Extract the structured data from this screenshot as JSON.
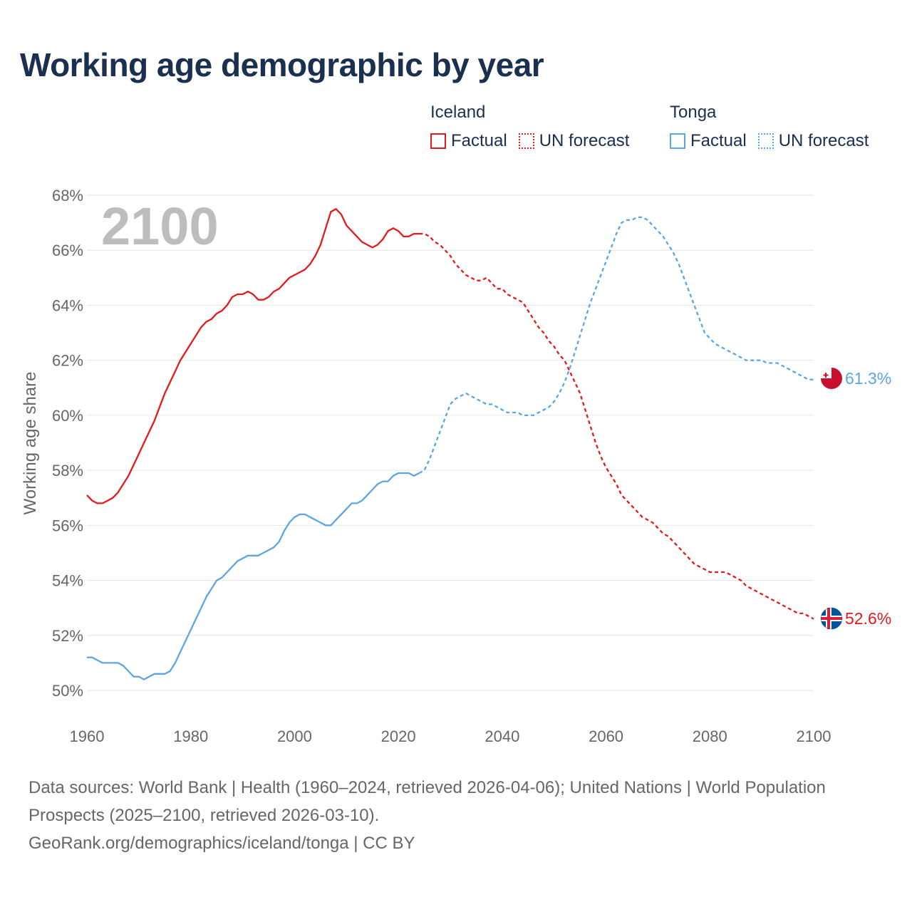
{
  "title": "Working age demographic by year",
  "legend": [
    {
      "country": "Iceland",
      "factual_label": "Factual",
      "forecast_label": "UN forecast",
      "color": "#e41a1c"
    },
    {
      "country": "Tonga",
      "factual_label": "Factual",
      "forecast_label": "UN forecast",
      "color": "#5da5e6"
    }
  ],
  "year_label": "2100",
  "footer": {
    "sources": "Data sources: World Bank | Health (1960–2024, retrieved 2026-04-06); United Nations | World Population Prospects (2025–2100, retrieved 2026-03-10).",
    "link": "GeoRank.org/demographics/iceland/tonga | CC BY"
  },
  "chart_data": {
    "type": "line",
    "title": "Working age demographic by year",
    "xlabel": "",
    "ylabel": "Working age share",
    "xlim": [
      1960,
      2100
    ],
    "ylim": [
      49.2,
      68.3
    ],
    "x_ticks": [
      1960,
      1980,
      2000,
      2020,
      2040,
      2060,
      2080,
      2100
    ],
    "y_ticks": [
      50,
      52,
      54,
      56,
      58,
      60,
      62,
      64,
      66,
      68
    ],
    "y_tick_labels": [
      "50%",
      "52%",
      "54%",
      "56%",
      "58%",
      "60%",
      "62%",
      "64%",
      "66%",
      "68%"
    ],
    "grid": true,
    "factual_end_year": 2024,
    "series": [
      {
        "name": "Iceland",
        "color": "#e41a1c",
        "end_label": "52.6%",
        "points": [
          [
            1960,
            57.1
          ],
          [
            1961,
            56.9
          ],
          [
            1962,
            56.8
          ],
          [
            1963,
            56.8
          ],
          [
            1964,
            56.9
          ],
          [
            1965,
            57.0
          ],
          [
            1966,
            57.2
          ],
          [
            1967,
            57.5
          ],
          [
            1968,
            57.8
          ],
          [
            1969,
            58.2
          ],
          [
            1970,
            58.6
          ],
          [
            1971,
            59.0
          ],
          [
            1972,
            59.4
          ],
          [
            1973,
            59.8
          ],
          [
            1974,
            60.3
          ],
          [
            1975,
            60.8
          ],
          [
            1976,
            61.2
          ],
          [
            1977,
            61.6
          ],
          [
            1978,
            62.0
          ],
          [
            1979,
            62.3
          ],
          [
            1980,
            62.6
          ],
          [
            1981,
            62.9
          ],
          [
            1982,
            63.2
          ],
          [
            1983,
            63.4
          ],
          [
            1984,
            63.5
          ],
          [
            1985,
            63.7
          ],
          [
            1986,
            63.8
          ],
          [
            1987,
            64.0
          ],
          [
            1988,
            64.3
          ],
          [
            1989,
            64.4
          ],
          [
            1990,
            64.4
          ],
          [
            1991,
            64.5
          ],
          [
            1992,
            64.4
          ],
          [
            1993,
            64.2
          ],
          [
            1994,
            64.2
          ],
          [
            1995,
            64.3
          ],
          [
            1996,
            64.5
          ],
          [
            1997,
            64.6
          ],
          [
            1998,
            64.8
          ],
          [
            1999,
            65.0
          ],
          [
            2000,
            65.1
          ],
          [
            2001,
            65.2
          ],
          [
            2002,
            65.3
          ],
          [
            2003,
            65.5
          ],
          [
            2004,
            65.8
          ],
          [
            2005,
            66.2
          ],
          [
            2006,
            66.8
          ],
          [
            2007,
            67.4
          ],
          [
            2008,
            67.5
          ],
          [
            2009,
            67.3
          ],
          [
            2010,
            66.9
          ],
          [
            2011,
            66.7
          ],
          [
            2012,
            66.5
          ],
          [
            2013,
            66.3
          ],
          [
            2014,
            66.2
          ],
          [
            2015,
            66.1
          ],
          [
            2016,
            66.2
          ],
          [
            2017,
            66.4
          ],
          [
            2018,
            66.7
          ],
          [
            2019,
            66.8
          ],
          [
            2020,
            66.7
          ],
          [
            2021,
            66.5
          ],
          [
            2022,
            66.5
          ],
          [
            2023,
            66.6
          ],
          [
            2024,
            66.6
          ],
          [
            2025,
            66.6
          ],
          [
            2026,
            66.5
          ],
          [
            2027,
            66.3
          ],
          [
            2028,
            66.2
          ],
          [
            2029,
            66.0
          ],
          [
            2030,
            65.8
          ],
          [
            2031,
            65.5
          ],
          [
            2032,
            65.3
          ],
          [
            2033,
            65.1
          ],
          [
            2034,
            65.0
          ],
          [
            2035,
            64.9
          ],
          [
            2036,
            64.9
          ],
          [
            2037,
            65.0
          ],
          [
            2038,
            64.8
          ],
          [
            2039,
            64.6
          ],
          [
            2040,
            64.6
          ],
          [
            2041,
            64.4
          ],
          [
            2042,
            64.3
          ],
          [
            2043,
            64.2
          ],
          [
            2044,
            64.1
          ],
          [
            2045,
            63.8
          ],
          [
            2046,
            63.5
          ],
          [
            2047,
            63.2
          ],
          [
            2048,
            63.0
          ],
          [
            2049,
            62.7
          ],
          [
            2050,
            62.5
          ],
          [
            2051,
            62.2
          ],
          [
            2052,
            62.0
          ],
          [
            2053,
            61.6
          ],
          [
            2054,
            61.2
          ],
          [
            2055,
            60.8
          ],
          [
            2056,
            60.2
          ],
          [
            2057,
            59.6
          ],
          [
            2058,
            59.0
          ],
          [
            2059,
            58.5
          ],
          [
            2060,
            58.1
          ],
          [
            2061,
            57.8
          ],
          [
            2062,
            57.5
          ],
          [
            2063,
            57.1
          ],
          [
            2064,
            56.9
          ],
          [
            2065,
            56.7
          ],
          [
            2066,
            56.5
          ],
          [
            2067,
            56.3
          ],
          [
            2068,
            56.2
          ],
          [
            2069,
            56.1
          ],
          [
            2070,
            55.9
          ],
          [
            2071,
            55.7
          ],
          [
            2072,
            55.6
          ],
          [
            2073,
            55.4
          ],
          [
            2074,
            55.2
          ],
          [
            2075,
            55.0
          ],
          [
            2076,
            54.8
          ],
          [
            2077,
            54.6
          ],
          [
            2078,
            54.5
          ],
          [
            2079,
            54.4
          ],
          [
            2080,
            54.3
          ],
          [
            2081,
            54.3
          ],
          [
            2082,
            54.3
          ],
          [
            2083,
            54.3
          ],
          [
            2084,
            54.2
          ],
          [
            2085,
            54.1
          ],
          [
            2086,
            54.0
          ],
          [
            2087,
            53.8
          ],
          [
            2088,
            53.7
          ],
          [
            2089,
            53.6
          ],
          [
            2090,
            53.5
          ],
          [
            2091,
            53.4
          ],
          [
            2092,
            53.3
          ],
          [
            2093,
            53.2
          ],
          [
            2094,
            53.1
          ],
          [
            2095,
            53.0
          ],
          [
            2096,
            52.9
          ],
          [
            2097,
            52.8
          ],
          [
            2098,
            52.8
          ],
          [
            2099,
            52.7
          ],
          [
            2100,
            52.6
          ]
        ]
      },
      {
        "name": "Tonga",
        "color": "#5da5e6",
        "end_label": "61.3%",
        "points": [
          [
            1960,
            51.2
          ],
          [
            1961,
            51.2
          ],
          [
            1962,
            51.1
          ],
          [
            1963,
            51.0
          ],
          [
            1964,
            51.0
          ],
          [
            1965,
            51.0
          ],
          [
            1966,
            51.0
          ],
          [
            1967,
            50.9
          ],
          [
            1968,
            50.7
          ],
          [
            1969,
            50.5
          ],
          [
            1970,
            50.5
          ],
          [
            1971,
            50.4
          ],
          [
            1972,
            50.5
          ],
          [
            1973,
            50.6
          ],
          [
            1974,
            50.6
          ],
          [
            1975,
            50.6
          ],
          [
            1976,
            50.7
          ],
          [
            1977,
            51.0
          ],
          [
            1978,
            51.4
          ],
          [
            1979,
            51.8
          ],
          [
            1980,
            52.2
          ],
          [
            1981,
            52.6
          ],
          [
            1982,
            53.0
          ],
          [
            1983,
            53.4
          ],
          [
            1984,
            53.7
          ],
          [
            1985,
            54.0
          ],
          [
            1986,
            54.1
          ],
          [
            1987,
            54.3
          ],
          [
            1988,
            54.5
          ],
          [
            1989,
            54.7
          ],
          [
            1990,
            54.8
          ],
          [
            1991,
            54.9
          ],
          [
            1992,
            54.9
          ],
          [
            1993,
            54.9
          ],
          [
            1994,
            55.0
          ],
          [
            1995,
            55.1
          ],
          [
            1996,
            55.2
          ],
          [
            1997,
            55.4
          ],
          [
            1998,
            55.8
          ],
          [
            1999,
            56.1
          ],
          [
            2000,
            56.3
          ],
          [
            2001,
            56.4
          ],
          [
            2002,
            56.4
          ],
          [
            2003,
            56.3
          ],
          [
            2004,
            56.2
          ],
          [
            2005,
            56.1
          ],
          [
            2006,
            56.0
          ],
          [
            2007,
            56.0
          ],
          [
            2008,
            56.2
          ],
          [
            2009,
            56.4
          ],
          [
            2010,
            56.6
          ],
          [
            2011,
            56.8
          ],
          [
            2012,
            56.8
          ],
          [
            2013,
            56.9
          ],
          [
            2014,
            57.1
          ],
          [
            2015,
            57.3
          ],
          [
            2016,
            57.5
          ],
          [
            2017,
            57.6
          ],
          [
            2018,
            57.6
          ],
          [
            2019,
            57.8
          ],
          [
            2020,
            57.9
          ],
          [
            2021,
            57.9
          ],
          [
            2022,
            57.9
          ],
          [
            2023,
            57.8
          ],
          [
            2024,
            57.9
          ],
          [
            2025,
            58.0
          ],
          [
            2026,
            58.4
          ],
          [
            2027,
            58.9
          ],
          [
            2028,
            59.4
          ],
          [
            2029,
            59.9
          ],
          [
            2030,
            60.4
          ],
          [
            2031,
            60.6
          ],
          [
            2032,
            60.7
          ],
          [
            2033,
            60.8
          ],
          [
            2034,
            60.7
          ],
          [
            2035,
            60.6
          ],
          [
            2036,
            60.5
          ],
          [
            2037,
            60.4
          ],
          [
            2038,
            60.4
          ],
          [
            2039,
            60.3
          ],
          [
            2040,
            60.2
          ],
          [
            2041,
            60.1
          ],
          [
            2042,
            60.1
          ],
          [
            2043,
            60.1
          ],
          [
            2044,
            60.0
          ],
          [
            2045,
            60.0
          ],
          [
            2046,
            60.0
          ],
          [
            2047,
            60.1
          ],
          [
            2048,
            60.2
          ],
          [
            2049,
            60.3
          ],
          [
            2050,
            60.5
          ],
          [
            2051,
            60.8
          ],
          [
            2052,
            61.2
          ],
          [
            2053,
            61.7
          ],
          [
            2054,
            62.3
          ],
          [
            2055,
            62.9
          ],
          [
            2056,
            63.5
          ],
          [
            2057,
            64.1
          ],
          [
            2058,
            64.6
          ],
          [
            2059,
            65.1
          ],
          [
            2060,
            65.6
          ],
          [
            2061,
            66.1
          ],
          [
            2062,
            66.6
          ],
          [
            2063,
            67.0
          ],
          [
            2064,
            67.1
          ],
          [
            2065,
            67.1
          ],
          [
            2066,
            67.2
          ],
          [
            2067,
            67.2
          ],
          [
            2068,
            67.1
          ],
          [
            2069,
            66.9
          ],
          [
            2070,
            66.7
          ],
          [
            2071,
            66.5
          ],
          [
            2072,
            66.2
          ],
          [
            2073,
            65.9
          ],
          [
            2074,
            65.5
          ],
          [
            2075,
            65.0
          ],
          [
            2076,
            64.5
          ],
          [
            2077,
            64.0
          ],
          [
            2078,
            63.5
          ],
          [
            2079,
            63.0
          ],
          [
            2080,
            62.8
          ],
          [
            2081,
            62.6
          ],
          [
            2082,
            62.5
          ],
          [
            2083,
            62.4
          ],
          [
            2084,
            62.3
          ],
          [
            2085,
            62.2
          ],
          [
            2086,
            62.1
          ],
          [
            2087,
            62.0
          ],
          [
            2088,
            62.0
          ],
          [
            2089,
            62.0
          ],
          [
            2090,
            62.0
          ],
          [
            2091,
            61.9
          ],
          [
            2092,
            61.9
          ],
          [
            2093,
            61.9
          ],
          [
            2094,
            61.8
          ],
          [
            2095,
            61.7
          ],
          [
            2096,
            61.6
          ],
          [
            2097,
            61.5
          ],
          [
            2098,
            61.4
          ],
          [
            2099,
            61.3
          ],
          [
            2100,
            61.3
          ]
        ]
      }
    ]
  }
}
